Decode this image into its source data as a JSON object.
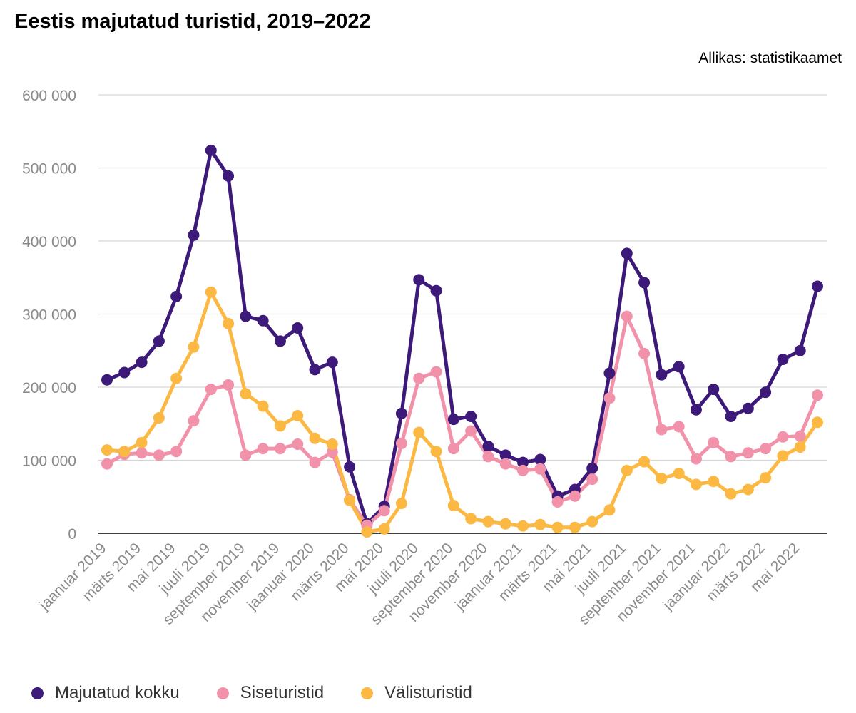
{
  "title": "Eestis majutatud turistid, 2019–2022",
  "source": "Allikas: statistikaamet",
  "chart_data": {
    "type": "line",
    "title": "Eestis majutatud turistid, 2019–2022",
    "ylim": [
      0,
      600000
    ],
    "yticks": [
      0,
      100000,
      200000,
      300000,
      400000,
      500000,
      600000
    ],
    "ytick_labels": [
      "0",
      "100 000",
      "200 000",
      "300 000",
      "400 000",
      "500 000",
      "600 000"
    ],
    "grid": true,
    "legend_position": "bottom-left",
    "x": [
      "jaanuar 2019",
      "veebruar 2019",
      "märts 2019",
      "aprill 2019",
      "mai 2019",
      "juuni 2019",
      "juuli 2019",
      "august 2019",
      "september 2019",
      "oktoober 2019",
      "november 2019",
      "detsember 2019",
      "jaanuar 2020",
      "veebruar 2020",
      "märts 2020",
      "aprill 2020",
      "mai 2020",
      "juuni 2020",
      "juuli 2020",
      "august 2020",
      "september 2020",
      "oktoober 2020",
      "november 2020",
      "detsember 2020",
      "jaanuar 2021",
      "veebruar 2021",
      "märts 2021",
      "aprill 2021",
      "mai 2021",
      "juuni 2021",
      "juuli 2021",
      "august 2021",
      "september 2021",
      "oktoober 2021",
      "november 2021",
      "detsember 2021",
      "jaanuar 2022",
      "veebruar 2022",
      "märts 2022",
      "aprill 2022",
      "mai 2022",
      "juuni 2022"
    ],
    "xtick_labels": [
      "jaanuar 2019",
      "märts 2019",
      "mai 2019",
      "juuli 2019",
      "september 2019",
      "november 2019",
      "jaanuar 2020",
      "märts 2020",
      "mai 2020",
      "juuli 2020",
      "september 2020",
      "november 2020",
      "jaanuar 2021",
      "märts 2021",
      "mai 2021",
      "juuli 2021",
      "september 2021",
      "november 2021",
      "jaanuar 2022",
      "märts 2022",
      "mai 2022"
    ],
    "series": [
      {
        "name": "Majutatud kokku",
        "color": "#3d1a7a",
        "values": [
          210000,
          220000,
          234000,
          263000,
          324000,
          408000,
          524000,
          489000,
          297000,
          291000,
          263000,
          281000,
          224000,
          234000,
          91000,
          13000,
          37000,
          164000,
          347000,
          332000,
          156000,
          160000,
          119000,
          107000,
          97000,
          101000,
          51000,
          60000,
          89000,
          219000,
          383000,
          343000,
          217000,
          228000,
          169000,
          197000,
          160000,
          171000,
          193000,
          238000,
          250000,
          338000
        ]
      },
      {
        "name": "Siseturistid",
        "color": "#f291aa",
        "values": [
          95000,
          108000,
          110000,
          107000,
          112000,
          154000,
          197000,
          203000,
          107000,
          116000,
          116000,
          122000,
          97000,
          111000,
          46000,
          11000,
          31000,
          123000,
          212000,
          221000,
          116000,
          140000,
          105000,
          95000,
          86000,
          88000,
          43000,
          51000,
          74000,
          185000,
          297000,
          246000,
          142000,
          146000,
          102000,
          124000,
          105000,
          110000,
          116000,
          132000,
          133000,
          189000
        ]
      },
      {
        "name": "Välisturistid",
        "color": "#fbb944",
        "values": [
          114000,
          112000,
          124000,
          158000,
          212000,
          255000,
          330000,
          287000,
          191000,
          174000,
          147000,
          161000,
          130000,
          122000,
          45000,
          2000,
          6000,
          41000,
          138000,
          112000,
          38000,
          20000,
          16000,
          13000,
          10000,
          12000,
          8000,
          8000,
          16000,
          32000,
          86000,
          98000,
          75000,
          82000,
          67000,
          71000,
          54000,
          60000,
          76000,
          106000,
          118000,
          152000
        ]
      }
    ]
  }
}
